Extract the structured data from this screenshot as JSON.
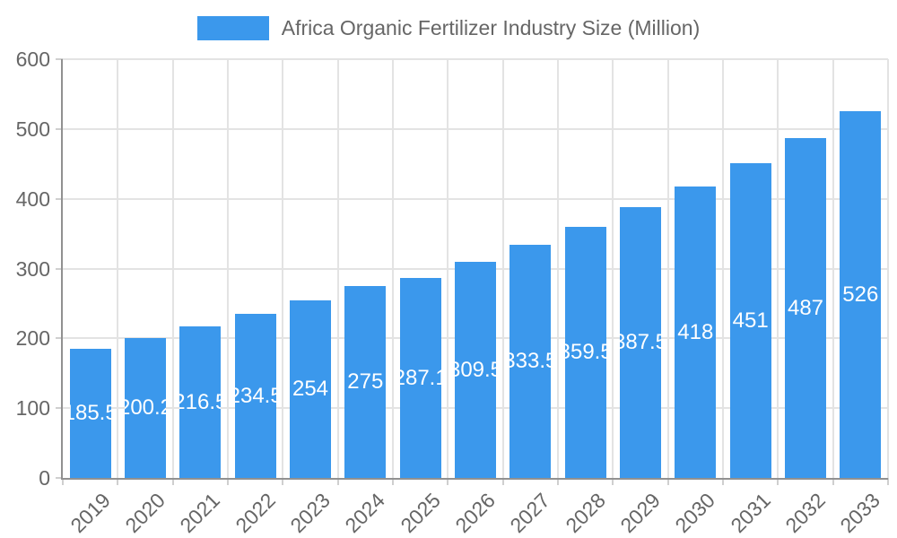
{
  "legend": {
    "label": "Africa Organic Fertilizer Industry Size (Million)",
    "swatch_color": "#3b98ec"
  },
  "chart_data": {
    "type": "bar",
    "title": "Africa Organic Fertilizer Industry Size (Million)",
    "categories": [
      "2019",
      "2020",
      "2021",
      "2022",
      "2023",
      "2024",
      "2025",
      "2026",
      "2027",
      "2028",
      "2029",
      "2030",
      "2031",
      "2032",
      "2033"
    ],
    "values": [
      185.5,
      200.2,
      216.5,
      234.5,
      254,
      275,
      287.1,
      309.5,
      333.5,
      359.5,
      387.5,
      418,
      451,
      487,
      526
    ],
    "bar_labels": [
      "185.5",
      "200.2",
      "216.5",
      "234.5",
      "254",
      "275",
      "287.1",
      "309.5",
      "333.5",
      "359.5",
      "387.5",
      "418",
      "451",
      "487",
      "526"
    ],
    "xlabel": "",
    "ylabel": "",
    "ylim": [
      0,
      600
    ],
    "yticks": [
      0,
      100,
      200,
      300,
      400,
      500,
      600
    ],
    "grid": true,
    "legend_position": "top",
    "bar_color": "#3b98ec",
    "bar_label_color": "#ffffff",
    "axis_text_color": "#666666",
    "gridline_color": "#e3e3e3",
    "axis_line_color": "#919191"
  }
}
